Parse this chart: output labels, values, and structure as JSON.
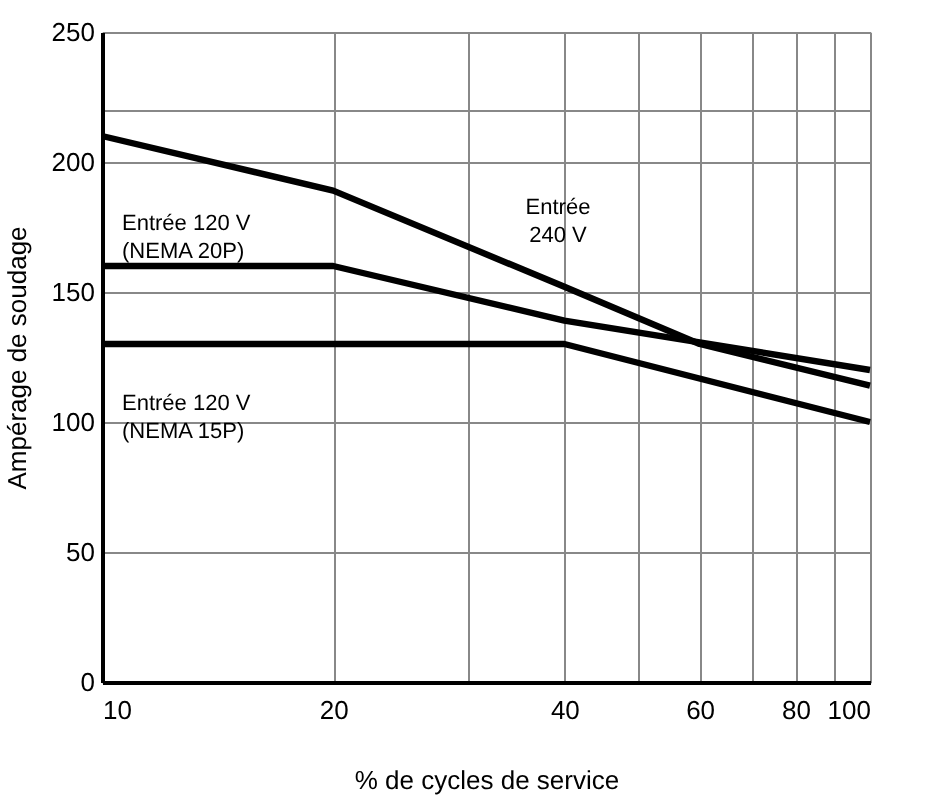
{
  "chart_data": {
    "type": "line",
    "xlabel": "% de cycles de service",
    "ylabel": "Ampérage de soudage",
    "log": "x",
    "xlim": [
      10,
      100
    ],
    "ylim": [
      0,
      250
    ],
    "xticks": [
      10,
      20,
      {
        "value": 30,
        "label": null
      },
      40,
      {
        "value": 50,
        "label": null
      },
      60,
      {
        "value": 70,
        "label": null
      },
      80,
      {
        "value": 90,
        "label": null
      },
      100
    ],
    "yticks": [
      0,
      50,
      100,
      150,
      200,
      {
        "value": 220,
        "label": null
      },
      250
    ],
    "grid": true,
    "legend": false,
    "marker": "none",
    "line_style": "solid",
    "series": [
      {
        "color": "#000000",
        "x": [
          10,
          20,
          40,
          60,
          100
        ],
        "values": [
          210,
          189,
          152,
          130,
          114
        ]
      },
      {
        "color": "#000000",
        "x": [
          10,
          20,
          40,
          100
        ],
        "values": [
          160,
          160,
          139,
          120
        ]
      },
      {
        "color": "#000000",
        "x": [
          10,
          40,
          100
        ],
        "values": [
          130,
          130,
          100
        ]
      }
    ],
    "annotations": [
      "Entrée 120 V\n(NEMA 20P)",
      "Entrée\n240 V",
      "Entrée 120 V\n(NEMA 15P)"
    ]
  }
}
